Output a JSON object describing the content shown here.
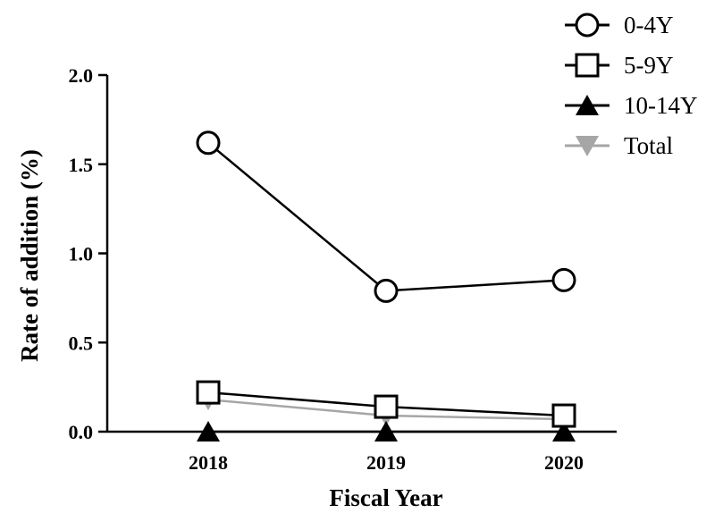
{
  "chart_data": {
    "type": "line",
    "title": "",
    "xlabel": "Fiscal Year",
    "ylabel": "Rate of addition (%)",
    "categories": [
      "2018",
      "2019",
      "2020"
    ],
    "ylim": [
      0,
      2.0
    ],
    "yticks": [
      "0.0",
      "0.5",
      "1.0",
      "1.5",
      "2.0"
    ],
    "grid": false,
    "legend_position": "top-right",
    "series": [
      {
        "name": "0-4Y",
        "values": [
          1.62,
          0.79,
          0.85
        ],
        "marker": "circle-open",
        "color": "#000000"
      },
      {
        "name": "5-9Y",
        "values": [
          0.22,
          0.14,
          0.09
        ],
        "marker": "square-open",
        "color": "#000000"
      },
      {
        "name": "10-14Y",
        "values": [
          0.0,
          0.0,
          0.0
        ],
        "marker": "triangle-up-filled",
        "color": "#000000"
      },
      {
        "name": "Total",
        "values": [
          0.18,
          0.09,
          0.07
        ],
        "marker": "triangle-down-filled",
        "color": "#a6a6a6"
      }
    ]
  }
}
